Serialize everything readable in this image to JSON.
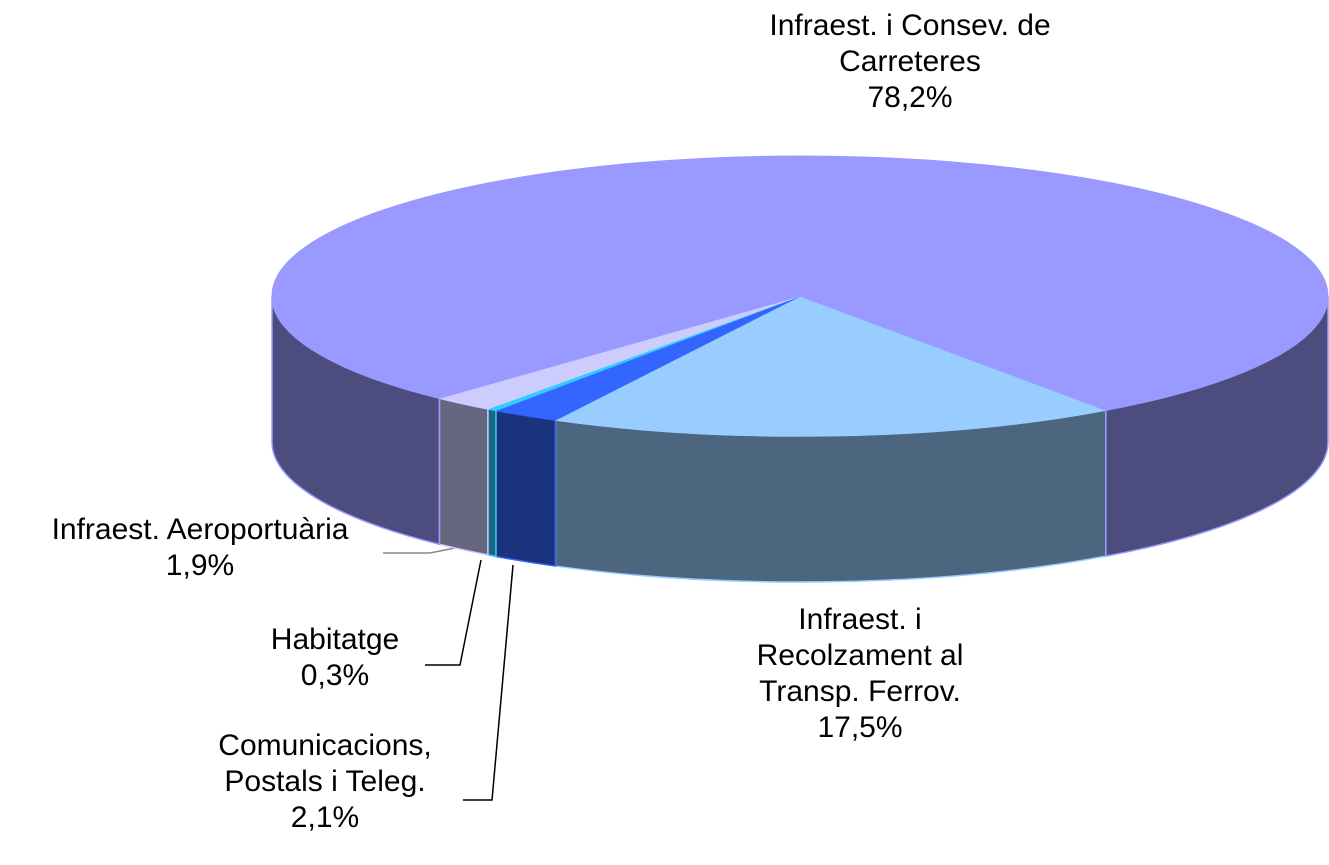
{
  "chart_data": {
    "type": "pie3d",
    "categories": [
      "Infraest. i Recolzament al Transp. Ferrov.",
      "Comunicacions, Postals i Teleg.",
      "Habitatge",
      "Infraest. Aeroportuària",
      "Infraest. i Consev. de Carreteres"
    ],
    "values": [
      17.5,
      2.1,
      0.3,
      1.9,
      78.2
    ],
    "value_labels": [
      "17,5%",
      "2,1%",
      "0,3%",
      "1,9%",
      "78,2%"
    ],
    "colors": [
      "#99ccff",
      "#3366ff",
      "#33ccff",
      "#ccccff",
      "#9999ff"
    ]
  }
}
